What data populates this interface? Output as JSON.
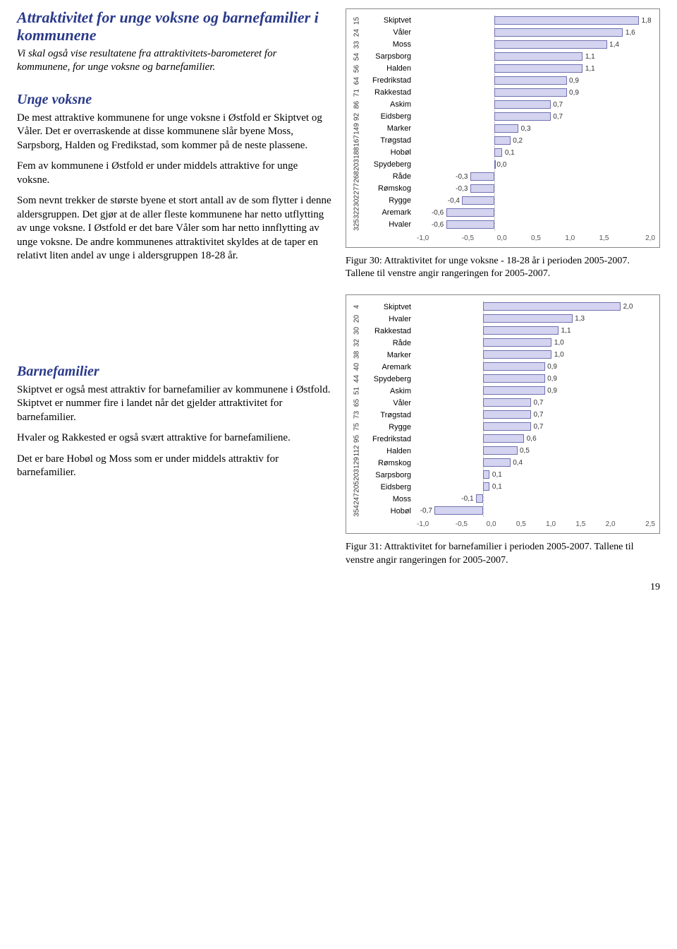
{
  "text": {
    "h_main": "Attraktivitet for unge voksne og barnefamilier i kommunene",
    "intro": "Vi skal også vise resultatene fra attraktivitets-barometeret for kommunene, for unge voksne og barnefamilier.",
    "h_unge": "Unge voksne",
    "unge_p1": "De mest attraktive kommunene for unge voksne i Østfold er Skiptvet og Våler. Det er overraskende at disse kommunene slår byene Moss, Sarpsborg, Halden og Fredikstad, som kommer på de neste plassene.",
    "unge_p2": "Fem av kommunene i Østfold er under middels attraktive for unge voksne.",
    "unge_p3": "Som nevnt trekker de største byene et stort antall av de som flytter i denne aldersgruppen. Det gjør at de aller fleste kommunene har netto utflytting av unge voksne. I Østfold er det bare Våler som har netto innflytting av unge voksne. De andre kommunenes attraktivitet skyldes at de taper en relativt liten andel av unge i aldersgruppen 18-28 år.",
    "h_barn": "Barnefamilier",
    "barn_p1": "Skiptvet er også mest attraktiv for barnefamilier av kommunene i Østfold. Skiptvet er nummer fire i landet når det gjelder attraktivitet for barnefamilier.",
    "barn_p2": "Hvaler og Rakkested er også svært attraktive for barnefamiliene.",
    "barn_p3": "Det er bare Hobøl og Moss som er under middels attraktiv for barnefamilier.",
    "fig30": "Figur 30: Attraktivitet for unge voksne - 18-28 år i perioden 2005-2007. Tallene til venstre angir rangeringen for 2005-2007.",
    "fig31": "Figur 31: Attraktivitet for barnefamilier i perioden 2005-2007. Tallene til venstre angir rangeringen for 2005-2007.",
    "pagenum": "19"
  },
  "chart30": {
    "xmin": -1.0,
    "xmax": 2.0,
    "ticks": [
      "-1,0",
      "-0,5",
      "0,0",
      "0,5",
      "1,0",
      "1,5",
      "2,0"
    ],
    "bar_fill": "#d4d4f0",
    "bar_border": "#7070b0",
    "rows": [
      {
        "rank": "15",
        "label": "Skiptvet",
        "v": 1.8,
        "t": "1,8"
      },
      {
        "rank": "24",
        "label": "Våler",
        "v": 1.6,
        "t": "1,6"
      },
      {
        "rank": "33",
        "label": "Moss",
        "v": 1.4,
        "t": "1,4"
      },
      {
        "rank": "54",
        "label": "Sarpsborg",
        "v": 1.1,
        "t": "1,1"
      },
      {
        "rank": "56",
        "label": "Halden",
        "v": 1.1,
        "t": "1,1"
      },
      {
        "rank": "64",
        "label": "Fredrikstad",
        "v": 0.9,
        "t": "0,9"
      },
      {
        "rank": "71",
        "label": "Rakkestad",
        "v": 0.9,
        "t": "0,9"
      },
      {
        "rank": "86",
        "label": "Askim",
        "v": 0.7,
        "t": "0,7"
      },
      {
        "rank": "92",
        "label": "Eidsberg",
        "v": 0.7,
        "t": "0,7"
      },
      {
        "rank": "149",
        "label": "Marker",
        "v": 0.3,
        "t": "0,3"
      },
      {
        "rank": "167",
        "label": "Trøgstad",
        "v": 0.2,
        "t": "0,2"
      },
      {
        "rank": "188",
        "label": "Hobøl",
        "v": 0.1,
        "t": "0,1"
      },
      {
        "rank": "203",
        "label": "Spydeberg",
        "v": 0.0,
        "t": "0,0"
      },
      {
        "rank": "268",
        "label": "Råde",
        "v": -0.3,
        "t": "-0,3"
      },
      {
        "rank": "277",
        "label": "Rømskog",
        "v": -0.3,
        "t": "-0,3"
      },
      {
        "rank": "302",
        "label": "Rygge",
        "v": -0.4,
        "t": "-0,4"
      },
      {
        "rank": "322",
        "label": "Aremark",
        "v": -0.6,
        "t": "-0,6"
      },
      {
        "rank": "325",
        "label": "Hvaler",
        "v": -0.6,
        "t": "-0,6"
      }
    ]
  },
  "chart31": {
    "xmin": -1.0,
    "xmax": 2.5,
    "ticks": [
      "-1,0",
      "-0,5",
      "0,0",
      "0,5",
      "1,0",
      "1,5",
      "2,0",
      "2,5"
    ],
    "bar_fill": "#d4d4f0",
    "bar_border": "#7070b0",
    "rows": [
      {
        "rank": "4",
        "label": "Skiptvet",
        "v": 2.0,
        "t": "2,0"
      },
      {
        "rank": "20",
        "label": "Hvaler",
        "v": 1.3,
        "t": "1,3"
      },
      {
        "rank": "30",
        "label": "Rakkestad",
        "v": 1.1,
        "t": "1,1"
      },
      {
        "rank": "32",
        "label": "Råde",
        "v": 1.0,
        "t": "1,0"
      },
      {
        "rank": "38",
        "label": "Marker",
        "v": 1.0,
        "t": "1,0"
      },
      {
        "rank": "40",
        "label": "Aremark",
        "v": 0.9,
        "t": "0,9"
      },
      {
        "rank": "44",
        "label": "Spydeberg",
        "v": 0.9,
        "t": "0,9"
      },
      {
        "rank": "51",
        "label": "Askim",
        "v": 0.9,
        "t": "0,9"
      },
      {
        "rank": "65",
        "label": "Våler",
        "v": 0.7,
        "t": "0,7"
      },
      {
        "rank": "73",
        "label": "Trøgstad",
        "v": 0.7,
        "t": "0,7"
      },
      {
        "rank": "75",
        "label": "Rygge",
        "v": 0.7,
        "t": "0,7"
      },
      {
        "rank": "95",
        "label": "Fredrikstad",
        "v": 0.6,
        "t": "0,6"
      },
      {
        "rank": "112",
        "label": "Halden",
        "v": 0.5,
        "t": "0,5"
      },
      {
        "rank": "129",
        "label": "Rømskog",
        "v": 0.4,
        "t": "0,4"
      },
      {
        "rank": "203",
        "label": "Sarpsborg",
        "v": 0.1,
        "t": "0,1"
      },
      {
        "rank": "205",
        "label": "Eidsberg",
        "v": 0.1,
        "t": "0,1"
      },
      {
        "rank": "247",
        "label": "Moss",
        "v": -0.1,
        "t": "-0,1"
      },
      {
        "rank": "354",
        "label": "Hobøl",
        "v": -0.7,
        "t": "-0,7"
      }
    ]
  }
}
